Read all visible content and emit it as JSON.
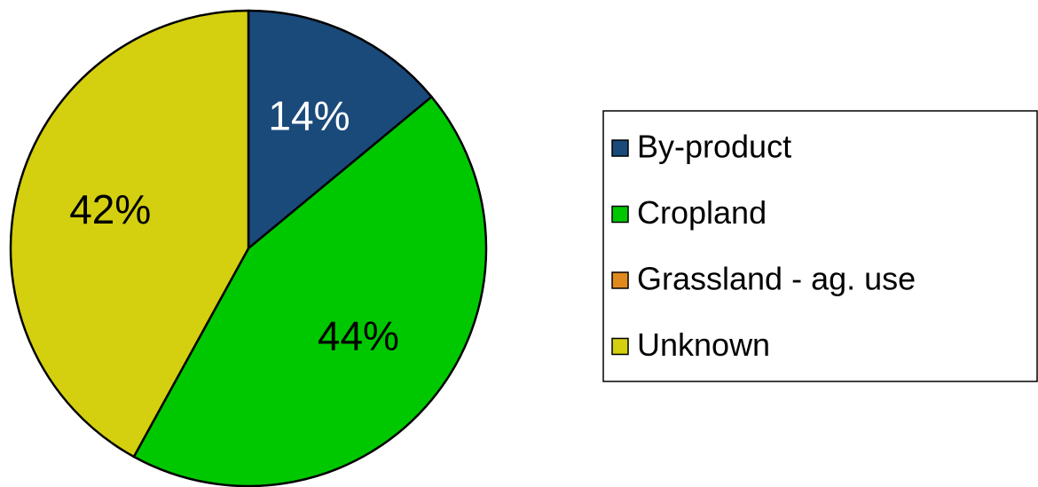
{
  "chart_data": {
    "type": "pie",
    "categories": [
      "By-product",
      "Cropland",
      "Grassland - ag. use",
      "Unknown"
    ],
    "values": [
      14,
      44,
      0,
      42
    ],
    "value_labels": [
      "14%",
      "44%",
      null,
      "42%"
    ],
    "colors": [
      "#1a4a7a",
      "#00c800",
      "#e08a1e",
      "#d4d010"
    ],
    "legend": "right"
  }
}
